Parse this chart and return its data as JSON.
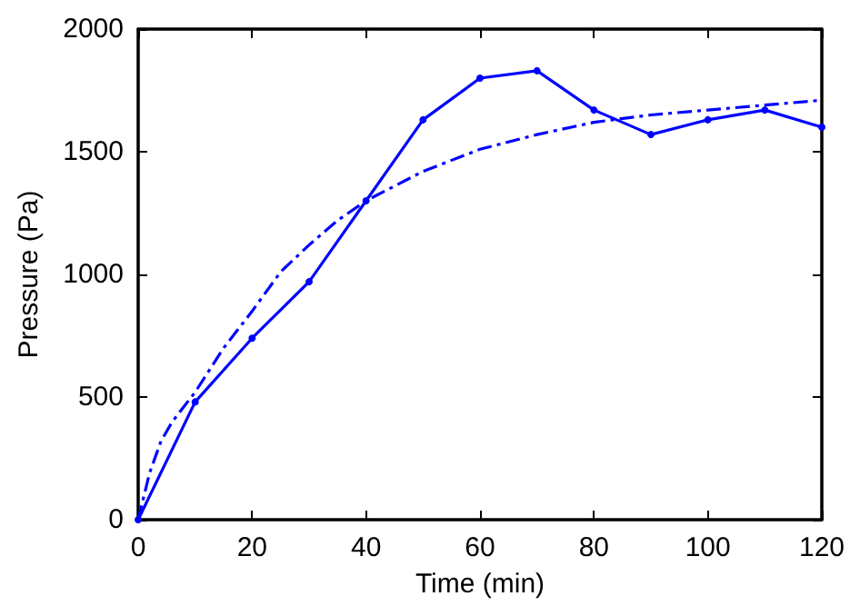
{
  "chart_data": {
    "type": "line",
    "xlabel": "Time (min)",
    "ylabel": "Pressure (Pa)",
    "xlim": [
      0,
      120
    ],
    "ylim": [
      0,
      2000
    ],
    "xticks": [
      0,
      20,
      40,
      60,
      80,
      100,
      120
    ],
    "yticks": [
      0,
      500,
      1000,
      1500,
      2000
    ],
    "grid": false,
    "series": [
      {
        "color": "#0000ff",
        "marker": "circle",
        "line_style": "solid",
        "x": [
          0,
          10,
          20,
          30,
          40,
          50,
          60,
          70,
          80,
          90,
          100,
          110,
          120
        ],
        "values": [
          0,
          480,
          740,
          970,
          1300,
          1630,
          1800,
          1830,
          1670,
          1570,
          1630,
          1670,
          1600
        ]
      },
      {
        "color": "#0000ff",
        "marker": "none",
        "line_style": "dashed",
        "x": [
          0,
          2,
          4,
          6,
          8,
          10,
          15,
          20,
          25,
          30,
          35,
          40,
          50,
          60,
          70,
          80,
          90,
          100,
          110,
          120
        ],
        "values": [
          0,
          190,
          320,
          400,
          460,
          520,
          700,
          850,
          1010,
          1120,
          1220,
          1300,
          1420,
          1510,
          1570,
          1620,
          1650,
          1670,
          1690,
          1710
        ]
      }
    ]
  }
}
